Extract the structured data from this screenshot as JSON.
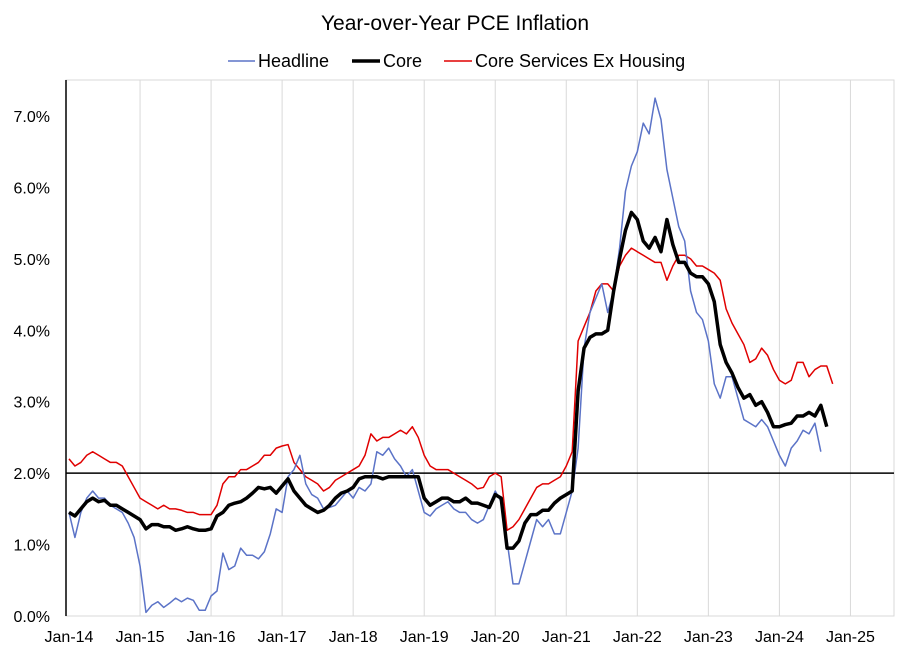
{
  "chart_data": {
    "type": "line",
    "title": "Year-over-Year PCE Inflation",
    "xlabel": "",
    "ylabel": "",
    "ylim": [
      0,
      0.075
    ],
    "y_ticks": [
      0.0,
      0.01,
      0.02,
      0.03,
      0.04,
      0.05,
      0.06,
      0.07
    ],
    "y_tick_labels": [
      "0.0%",
      "1.0%",
      "2.0%",
      "3.0%",
      "4.0%",
      "5.0%",
      "6.0%",
      "7.0%"
    ],
    "x_tick_labels": [
      "Jan-14",
      "Jan-15",
      "Jan-16",
      "Jan-17",
      "Jan-18",
      "Jan-19",
      "Jan-20",
      "Jan-21",
      "Jan-22",
      "Jan-23",
      "Jan-24",
      "Jan-25"
    ],
    "x_start": "Jan-14",
    "x_end": "May-25",
    "x_axis_crosses_at": 0.02,
    "grid": "vertical",
    "legend": "top",
    "series": [
      {
        "name": "Headline",
        "color": "#5B73C7",
        "values": [
          0.0145,
          0.011,
          0.0145,
          0.0165,
          0.0175,
          0.0165,
          0.0165,
          0.0155,
          0.015,
          0.0145,
          0.013,
          0.011,
          0.007,
          0.0005,
          0.0015,
          0.002,
          0.0012,
          0.0018,
          0.0025,
          0.002,
          0.0025,
          0.0022,
          0.0008,
          0.0008,
          0.0028,
          0.0035,
          0.0088,
          0.0065,
          0.007,
          0.0095,
          0.0085,
          0.0085,
          0.008,
          0.009,
          0.0115,
          0.015,
          0.0145,
          0.0195,
          0.0205,
          0.0225,
          0.0185,
          0.017,
          0.0165,
          0.015,
          0.0152,
          0.0155,
          0.0165,
          0.0175,
          0.0165,
          0.018,
          0.0175,
          0.0185,
          0.023,
          0.0225,
          0.0235,
          0.022,
          0.021,
          0.0195,
          0.0205,
          0.0175,
          0.0145,
          0.014,
          0.015,
          0.0155,
          0.016,
          0.015,
          0.0145,
          0.0145,
          0.0135,
          0.013,
          0.0135,
          0.0155,
          0.0175,
          0.016,
          0.0105,
          0.0045,
          0.0045,
          0.0075,
          0.0105,
          0.0135,
          0.0125,
          0.0135,
          0.0115,
          0.0115,
          0.0145,
          0.0175,
          0.0235,
          0.0375,
          0.0425,
          0.0445,
          0.0465,
          0.0425,
          0.0455,
          0.0515,
          0.0595,
          0.063,
          0.065,
          0.069,
          0.0675,
          0.0725,
          0.0695,
          0.0625,
          0.0585,
          0.0545,
          0.0525,
          0.0455,
          0.0425,
          0.0415,
          0.0385,
          0.0325,
          0.0305,
          0.0335,
          0.0335,
          0.0305,
          0.0275,
          0.027,
          0.0265,
          0.0275,
          0.0265,
          0.0245,
          0.0225,
          0.021,
          0.0235,
          0.0245,
          0.026,
          0.0255,
          0.027,
          0.023
        ]
      },
      {
        "name": "Core",
        "color": "#000000",
        "values": [
          0.0145,
          0.014,
          0.015,
          0.016,
          0.0165,
          0.016,
          0.0162,
          0.0155,
          0.0155,
          0.015,
          0.0145,
          0.014,
          0.0135,
          0.0122,
          0.0128,
          0.0128,
          0.0125,
          0.0125,
          0.012,
          0.0122,
          0.0125,
          0.0122,
          0.012,
          0.012,
          0.0122,
          0.014,
          0.0145,
          0.0155,
          0.0158,
          0.016,
          0.0165,
          0.0172,
          0.018,
          0.0178,
          0.018,
          0.0172,
          0.0182,
          0.0192,
          0.0175,
          0.0165,
          0.0155,
          0.015,
          0.0145,
          0.0148,
          0.0155,
          0.0165,
          0.0172,
          0.0175,
          0.018,
          0.0192,
          0.0195,
          0.0195,
          0.0195,
          0.0192,
          0.0195,
          0.0195,
          0.0195,
          0.0195,
          0.0195,
          0.0195,
          0.0165,
          0.0155,
          0.016,
          0.0165,
          0.0165,
          0.016,
          0.016,
          0.0165,
          0.0158,
          0.0158,
          0.0155,
          0.0152,
          0.017,
          0.0165,
          0.0095,
          0.0095,
          0.0105,
          0.013,
          0.0142,
          0.0142,
          0.0148,
          0.0148,
          0.0158,
          0.0165,
          0.017,
          0.0175,
          0.0315,
          0.0375,
          0.039,
          0.0395,
          0.0395,
          0.04,
          0.0455,
          0.05,
          0.054,
          0.0565,
          0.0555,
          0.0525,
          0.0515,
          0.053,
          0.051,
          0.0555,
          0.052,
          0.0495,
          0.0495,
          0.048,
          0.0475,
          0.0475,
          0.0465,
          0.044,
          0.038,
          0.0355,
          0.034,
          0.032,
          0.0305,
          0.031,
          0.0295,
          0.03,
          0.0285,
          0.0265,
          0.0265,
          0.0268,
          0.027,
          0.028,
          0.028,
          0.0285,
          0.028,
          0.0295,
          0.0265
        ]
      },
      {
        "name": "Core Services Ex Housing",
        "color": "#E00000",
        "values": [
          0.022,
          0.021,
          0.0215,
          0.0225,
          0.023,
          0.0225,
          0.022,
          0.0215,
          0.0215,
          0.021,
          0.0195,
          0.018,
          0.0165,
          0.016,
          0.0155,
          0.015,
          0.0155,
          0.015,
          0.015,
          0.0148,
          0.0145,
          0.0145,
          0.0142,
          0.0142,
          0.0142,
          0.0155,
          0.0185,
          0.0195,
          0.0195,
          0.0205,
          0.0205,
          0.021,
          0.0215,
          0.0225,
          0.0225,
          0.0235,
          0.0238,
          0.024,
          0.0215,
          0.0205,
          0.0195,
          0.019,
          0.0185,
          0.0175,
          0.018,
          0.019,
          0.0195,
          0.02,
          0.0205,
          0.021,
          0.0225,
          0.0255,
          0.0245,
          0.025,
          0.025,
          0.0255,
          0.026,
          0.0255,
          0.0265,
          0.025,
          0.0225,
          0.021,
          0.0205,
          0.0205,
          0.0205,
          0.02,
          0.0195,
          0.019,
          0.0185,
          0.0178,
          0.018,
          0.0195,
          0.02,
          0.0195,
          0.012,
          0.0125,
          0.0135,
          0.015,
          0.0165,
          0.018,
          0.0185,
          0.0185,
          0.019,
          0.0195,
          0.021,
          0.023,
          0.0385,
          0.0405,
          0.0425,
          0.0455,
          0.0465,
          0.0465,
          0.0455,
          0.049,
          0.0505,
          0.0515,
          0.051,
          0.0505,
          0.05,
          0.0495,
          0.0495,
          0.047,
          0.049,
          0.0505,
          0.0505,
          0.05,
          0.049,
          0.049,
          0.0485,
          0.048,
          0.047,
          0.043,
          0.041,
          0.0395,
          0.038,
          0.0355,
          0.036,
          0.0375,
          0.0365,
          0.0345,
          0.033,
          0.0325,
          0.033,
          0.0355,
          0.0355,
          0.0335,
          0.0345,
          0.035,
          0.035,
          0.0325
        ]
      }
    ]
  }
}
